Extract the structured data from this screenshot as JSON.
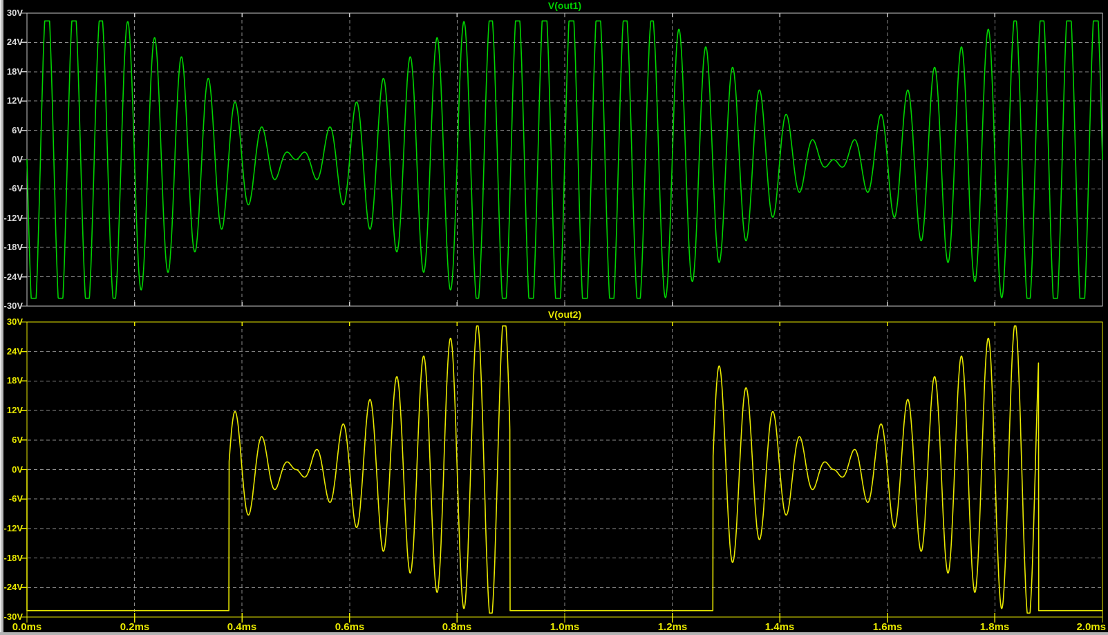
{
  "window": {
    "kind": "waveform-viewer-plot-window"
  },
  "background": "#000000",
  "frame_color": "#b4b4b4",
  "grid": {
    "color": "#8c8c8c",
    "dash": "5 4"
  },
  "panes": [
    {
      "title": "V(out1)",
      "trace_color": "#00d200",
      "axis_color": "#c8c8c8",
      "label_color": "#dcdcdc",
      "y_tick_labels": [
        "30V",
        "24V",
        "18V",
        "12V",
        "6V",
        "0V",
        "-6V",
        "-12V",
        "-18V",
        "-24V",
        "-30V"
      ]
    },
    {
      "title": "V(out2)",
      "trace_color": "#e8e800",
      "axis_color": "#e8e800",
      "label_color": "#e8e800",
      "y_tick_labels": [
        "30V",
        "24V",
        "18V",
        "12V",
        "6V",
        "0V",
        "-6V",
        "-12V",
        "-18V",
        "-24V",
        "-30V"
      ]
    }
  ],
  "x_axis": {
    "color": "#e8e800",
    "tick_labels": [
      "0.0ms",
      "0.2ms",
      "0.4ms",
      "0.6ms",
      "0.8ms",
      "1.0ms",
      "1.2ms",
      "1.4ms",
      "1.6ms",
      "1.8ms",
      "2.0ms"
    ]
  },
  "chart_data": [
    {
      "id": "vout1",
      "type": "line",
      "title": "V(out1)",
      "color": "#00d200",
      "x_unit": "ms",
      "y_unit": "V",
      "x_range": [
        0,
        2
      ],
      "y_range": [
        -30,
        30
      ],
      "x_ticks": [
        0,
        0.2,
        0.4,
        0.6,
        0.8,
        1.0,
        1.2,
        1.4,
        1.6,
        1.8,
        2.0
      ],
      "y_ticks": [
        30,
        24,
        18,
        12,
        6,
        0,
        -6,
        -12,
        -18,
        -24,
        -30
      ],
      "grid": true,
      "waveform": {
        "kind": "clipped_beat",
        "description": "v(t) = clip( -34V * cos(pi*t_ms) * sin(2*pi*20*t_ms), +/-28.4V ); 20kHz carrier, 1ms beat-envelope period, envelope zeros at 0.5ms and 1.5ms, flat-top clipping near envelope maxima at 0, 1.0, 2.0 ms",
        "carrier_cycles_per_ms": 20,
        "envelope_cycles_per_ms": 0.5,
        "envelope_amplitude_v": 34,
        "clip_v": 28.4,
        "envelope_zero_ms": [
          0.5,
          1.5
        ],
        "envelope_max_ms": [
          0,
          1.0,
          2.0
        ],
        "start_value_v": 0,
        "first_excursion": "negative"
      }
    },
    {
      "id": "vout2",
      "type": "line",
      "title": "V(out2)",
      "color": "#e8e800",
      "x_unit": "ms",
      "y_unit": "V",
      "x_range": [
        0,
        2
      ],
      "y_range": [
        -30,
        30
      ],
      "x_ticks": [
        0,
        0.2,
        0.4,
        0.6,
        0.8,
        1.0,
        1.2,
        1.4,
        1.6,
        1.8,
        2.0
      ],
      "y_ticks": [
        30,
        24,
        18,
        12,
        6,
        0,
        -6,
        -12,
        -18,
        -24,
        -30
      ],
      "grid": true,
      "waveform": {
        "kind": "gated_clipped_beat",
        "description": "Sits at -28.7V rail except during active windows, where v(t) = clip( -34V * |cos(pi*t_ms)| * sin(2*pi*20*t_ms), +/-29.2V ); starts at 0V at t=0 then drops to rail",
        "carrier_cycles_per_ms": 20,
        "envelope_cycles_per_ms": 0.5,
        "envelope_amplitude_v": 34,
        "clip_v": 29.2,
        "rail_v": -28.7,
        "active_windows_ms": [
          [
            0.376,
            0.898
          ],
          [
            1.276,
            1.881
          ]
        ],
        "start_value_v": 0,
        "envelope_zero_ms": [
          0.5,
          1.5
        ]
      }
    }
  ]
}
